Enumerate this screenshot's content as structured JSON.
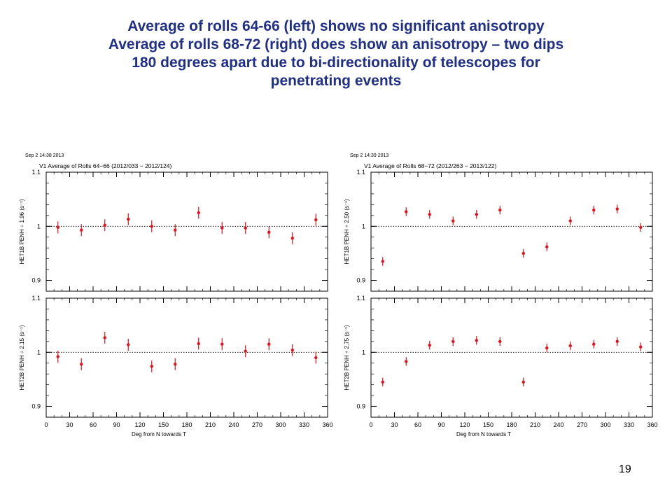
{
  "slide": {
    "title_lines": [
      "Average of rolls 64-66 (left) shows no significant anisotropy",
      "Average of rolls 68-72 (right) does show an anisotropy – two dips",
      "180 degrees apart due to bi-directionality of telescopes for",
      "penetrating events"
    ],
    "page_number": "19"
  },
  "colors": {
    "title": "#1f2f8a",
    "points": "#e8101a",
    "axes": "#000000",
    "reference_line": "#000000"
  },
  "chart_data": [
    {
      "id": "left",
      "type": "scatter",
      "timestamp": "Sep  2 14:38 2013",
      "title": "V1  Average  of  Rolls  64−66  (2012/033  −  2012/124)",
      "xlabel": "Deg  from  N  towards  T",
      "xlim": [
        0,
        360
      ],
      "xticks": [
        0,
        30,
        60,
        90,
        120,
        150,
        180,
        210,
        240,
        270,
        300,
        330,
        360
      ],
      "panels": [
        {
          "ylabel": "HET1B  PENH  ÷  1.96  (s⁻¹)",
          "ylim": [
            0.88,
            1.1
          ],
          "yticks": [
            0.9,
            1,
            1.1
          ],
          "ytick_labels": [
            "0.9",
            "1",
            "1.1"
          ],
          "reference_line": 1,
          "x": [
            15,
            45,
            75,
            105,
            135,
            165,
            195,
            225,
            255,
            285,
            315,
            345
          ],
          "y": [
            0.998,
            0.993,
            1.002,
            1.013,
            1.0,
            0.993,
            1.025,
            0.997,
            0.997,
            0.989,
            0.978,
            1.012
          ],
          "err": [
            0.011,
            0.011,
            0.011,
            0.011,
            0.011,
            0.011,
            0.011,
            0.011,
            0.011,
            0.011,
            0.011,
            0.011
          ]
        },
        {
          "ylabel": "HET2B  PENH  ÷  2.15  (s⁻¹)",
          "ylim": [
            0.88,
            1.1
          ],
          "yticks": [
            0.9,
            1,
            1.1
          ],
          "ytick_labels": [
            "0.9",
            "1",
            "1.1"
          ],
          "reference_line": 1,
          "x": [
            15,
            45,
            75,
            105,
            135,
            165,
            195,
            225,
            255,
            285,
            315,
            345
          ],
          "y": [
            0.992,
            0.978,
            1.027,
            1.014,
            0.974,
            0.978,
            1.016,
            1.015,
            1.002,
            1.015,
            1.004,
            0.99
          ],
          "err": [
            0.011,
            0.011,
            0.011,
            0.011,
            0.011,
            0.011,
            0.011,
            0.011,
            0.011,
            0.011,
            0.011,
            0.011
          ]
        }
      ]
    },
    {
      "id": "right",
      "type": "scatter",
      "timestamp": "Sep  2 14:39 2013",
      "title": "V1  Average  of  Rolls  68−72  (2012/263  −  2013/122)",
      "xlabel": "Deg  from  N  towards  T",
      "xlim": [
        0,
        360
      ],
      "xticks": [
        0,
        30,
        60,
        90,
        120,
        150,
        180,
        210,
        240,
        270,
        300,
        330,
        360
      ],
      "panels": [
        {
          "ylabel": "HET1B  PENH  ÷  2.50  (s⁻¹)",
          "ylim": [
            0.88,
            1.1
          ],
          "yticks": [
            0.9,
            1,
            1.1
          ],
          "ytick_labels": [
            "0.9",
            "1",
            "1.1"
          ],
          "reference_line": 1,
          "x": [
            15,
            45,
            75,
            105,
            135,
            165,
            195,
            225,
            255,
            285,
            315,
            345
          ],
          "y": [
            0.935,
            1.027,
            1.022,
            1.01,
            1.022,
            1.03,
            0.95,
            0.962,
            1.01,
            1.03,
            1.032,
            0.998
          ],
          "err": [
            0.008,
            0.008,
            0.008,
            0.008,
            0.008,
            0.008,
            0.008,
            0.008,
            0.008,
            0.008,
            0.008,
            0.008
          ]
        },
        {
          "ylabel": "HET2B  PENH  ÷  2.75  (s⁻¹)",
          "ylim": [
            0.88,
            1.1
          ],
          "yticks": [
            0.9,
            1,
            1.1
          ],
          "ytick_labels": [
            "0.9",
            "1",
            "1.1"
          ],
          "reference_line": 1,
          "x": [
            15,
            45,
            75,
            105,
            135,
            165,
            195,
            225,
            255,
            285,
            315,
            345
          ],
          "y": [
            0.945,
            0.983,
            1.013,
            1.02,
            1.022,
            1.02,
            0.945,
            1.008,
            1.012,
            1.015,
            1.02,
            1.01
          ],
          "err": [
            0.008,
            0.008,
            0.008,
            0.008,
            0.008,
            0.008,
            0.008,
            0.008,
            0.008,
            0.008,
            0.008,
            0.008
          ]
        }
      ]
    }
  ]
}
